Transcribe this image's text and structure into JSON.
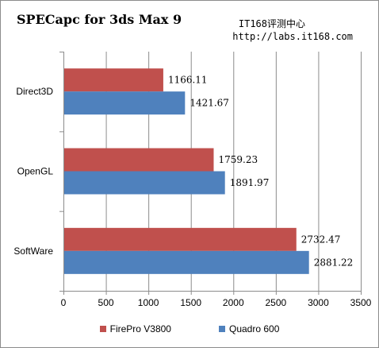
{
  "chart_data": {
    "type": "bar",
    "orientation": "horizontal",
    "title": "SPECapc for 3ds Max 9",
    "watermark": [
      "IT168评测中心",
      "http://labs.it168.com"
    ],
    "categories": [
      "Direct3D",
      "OpenGL",
      "SoftWare"
    ],
    "series": [
      {
        "name": "FirePro V3800",
        "color": "#c0504d",
        "values": [
          1166.11,
          1759.23,
          2732.47
        ],
        "labels": [
          "1166.11",
          "1759.23",
          "2732.47"
        ]
      },
      {
        "name": "Quadro 600",
        "color": "#4f81bd",
        "values": [
          1421.67,
          1891.97,
          2881.22
        ],
        "labels": [
          "1421.67",
          "1891.97",
          "2881.22"
        ]
      }
    ],
    "xlim": [
      0,
      3500
    ],
    "xticks": [
      "0",
      "500",
      "1000",
      "1500",
      "2000",
      "2500",
      "3000",
      "3500"
    ],
    "xtick_values": [
      0,
      500,
      1000,
      1500,
      2000,
      2500,
      3000,
      3500
    ],
    "grid": true,
    "legend_position": "bottom"
  }
}
